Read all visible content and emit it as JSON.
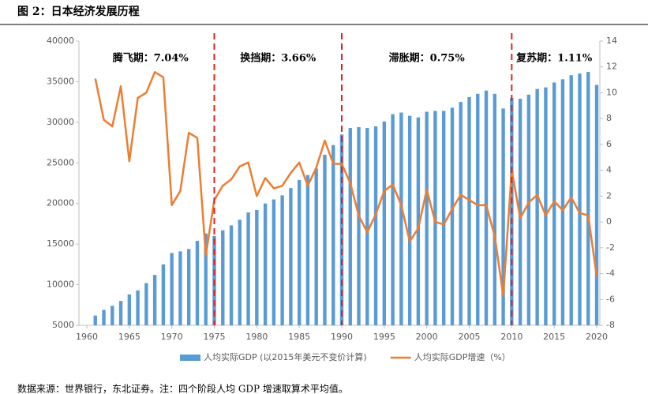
{
  "chart_data": {
    "type": "bar_line",
    "title": "图 2：日本经济发展历程",
    "note": "数据来源：世界银行，东北证券。注：四个阶段人均 GDP 增速取算术平均值。",
    "x": [
      1961,
      1962,
      1963,
      1964,
      1965,
      1966,
      1967,
      1968,
      1969,
      1970,
      1971,
      1972,
      1973,
      1974,
      1975,
      1976,
      1977,
      1978,
      1979,
      1980,
      1981,
      1982,
      1983,
      1984,
      1985,
      1986,
      1987,
      1988,
      1989,
      1990,
      1991,
      1992,
      1993,
      1994,
      1995,
      1996,
      1997,
      1998,
      1999,
      2000,
      2001,
      2002,
      2003,
      2004,
      2005,
      2006,
      2007,
      2008,
      2009,
      2010,
      2011,
      2012,
      2013,
      2014,
      2015,
      2016,
      2017,
      2018,
      2019,
      2020
    ],
    "series": [
      {
        "name": "人均实际GDP (以2015年美元不变价计算)",
        "color": "#5b9bd5",
        "type": "bar",
        "values": [
          6200,
          6900,
          7400,
          8000,
          8800,
          9300,
          10200,
          11200,
          12500,
          13900,
          14100,
          14400,
          15400,
          16300,
          16000,
          16700,
          17300,
          18000,
          18900,
          19200,
          20000,
          20500,
          21000,
          21900,
          22900,
          23500,
          24300,
          26000,
          27200,
          28500,
          29300,
          29400,
          29300,
          29500,
          30100,
          31000,
          31200,
          30800,
          30600,
          31300,
          31400,
          31400,
          31800,
          32500,
          33100,
          33500,
          33900,
          33500,
          31700,
          33000,
          32900,
          33400,
          34100,
          34300,
          34900,
          35300,
          35800,
          36000,
          36200,
          34600
        ]
      },
      {
        "name": "人均实际GDP增速（%）",
        "color": "#ed7d31",
        "type": "line",
        "axis": "y2",
        "values": [
          11.1,
          7.9,
          7.4,
          10.5,
          4.7,
          9.6,
          10.0,
          11.6,
          11.2,
          1.3,
          2.4,
          6.9,
          6.5,
          -2.6,
          1.7,
          2.8,
          3.3,
          4.3,
          4.6,
          2.0,
          3.4,
          2.6,
          2.8,
          3.8,
          4.6,
          2.8,
          4.2,
          6.3,
          4.5,
          4.5,
          3.0,
          0.5,
          -0.8,
          0.6,
          2.4,
          2.9,
          1.3,
          -1.5,
          -0.5,
          2.5,
          0.0,
          -0.2,
          1.0,
          2.1,
          1.7,
          1.3,
          1.3,
          -1.1,
          -5.7,
          4.0,
          0.3,
          1.5,
          2.1,
          0.5,
          1.6,
          0.9,
          1.9,
          0.7,
          0.5,
          -4.2
        ]
      }
    ],
    "vlines": [
      1975,
      1990,
      2010
    ],
    "vline_color": "#e02020",
    "annotations": [
      "腾飞期：7.04%",
      "换挡期：3.66%",
      "滞胀期：0.75%",
      "复苏期：1.11%"
    ],
    "xlim": [
      1960,
      2020
    ],
    "xticks": [
      1960,
      1965,
      1970,
      1975,
      1980,
      1985,
      1990,
      1995,
      2000,
      2005,
      2010,
      2015,
      2020
    ],
    "ylim": [
      5000,
      40000
    ],
    "yticks": [
      5000,
      10000,
      15000,
      20000,
      25000,
      30000,
      35000,
      40000
    ],
    "y2lim": [
      -8,
      14
    ],
    "y2ticks": [
      -8,
      -6,
      -4,
      -2,
      0,
      2,
      4,
      6,
      8,
      10,
      12,
      14
    ]
  }
}
